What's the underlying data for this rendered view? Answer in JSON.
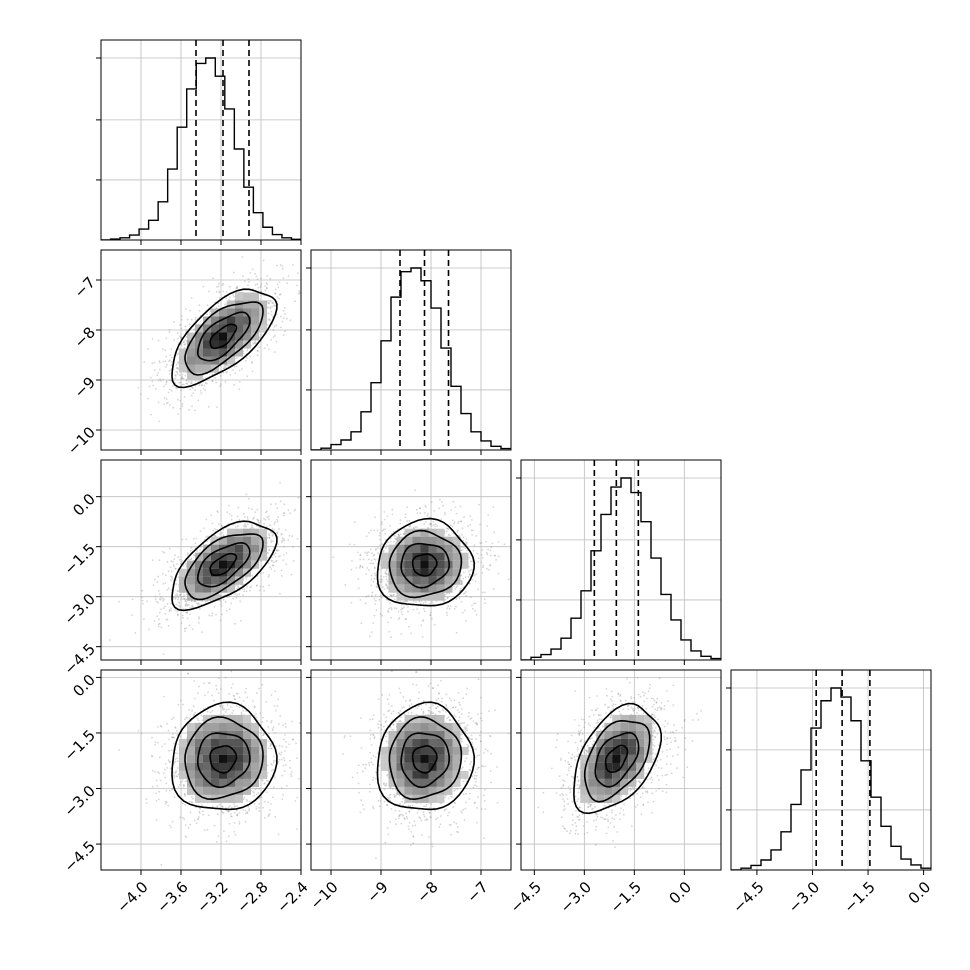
{
  "chart_data": {
    "type": "corner",
    "title": "",
    "grid": true,
    "params": [
      {
        "range": [
          -4.4,
          -2.4
        ],
        "ticks": [
          -4.0,
          -3.6,
          -3.2,
          -2.8,
          -2.4
        ],
        "tick_labels": [
          "−4.0",
          "−3.6",
          "−3.2",
          "−2.8",
          "−2.4"
        ],
        "quantiles": [
          -3.45,
          -3.18,
          -2.92
        ],
        "mean": -3.18,
        "sd": 0.26
      },
      {
        "range": [
          -10.4,
          -6.4
        ],
        "ticks": [
          -10,
          -9,
          -8,
          -7
        ],
        "tick_labels": [
          "−10",
          "−9",
          "−8",
          "−7"
        ],
        "quantiles": [
          -8.62,
          -8.13,
          -7.65
        ],
        "mean": -8.13,
        "sd": 0.48
      },
      {
        "range": [
          -4.9,
          1.1
        ],
        "ticks": [
          -4.5,
          -3.0,
          -1.5,
          0.0
        ],
        "tick_labels": [
          "−4.5",
          "−3.0",
          "−1.5",
          "0.0"
        ],
        "quantiles": [
          -2.7,
          -2.04,
          -1.38
        ],
        "mean": -2.04,
        "sd": 0.65
      },
      {
        "range": [
          -5.2,
          0.2
        ],
        "ticks": [
          -4.5,
          -3.0,
          -1.5,
          0.0
        ],
        "tick_labels": [
          "−4.5",
          "−3.0",
          "−1.5",
          "0.0"
        ],
        "quantiles": [
          -2.9,
          -2.2,
          -1.45
        ],
        "mean": -2.2,
        "sd": 0.72
      }
    ],
    "histograms": [
      [
        0.0,
        0.005,
        0.012,
        0.027,
        0.06,
        0.108,
        0.21,
        0.39,
        0.62,
        0.83,
        0.97,
        1.0,
        0.9,
        0.72,
        0.5,
        0.29,
        0.15,
        0.07,
        0.03,
        0.012,
        0.004
      ],
      [
        0.0,
        0.01,
        0.03,
        0.055,
        0.1,
        0.21,
        0.37,
        0.6,
        0.84,
        0.98,
        1.0,
        0.93,
        0.78,
        0.56,
        0.35,
        0.2,
        0.1,
        0.05,
        0.02,
        0.008
      ],
      [
        0.0,
        0.015,
        0.03,
        0.06,
        0.12,
        0.23,
        0.38,
        0.6,
        0.8,
        0.95,
        1.0,
        0.92,
        0.76,
        0.56,
        0.36,
        0.22,
        0.11,
        0.05,
        0.02,
        0.008
      ],
      [
        0.0,
        0.01,
        0.025,
        0.055,
        0.11,
        0.21,
        0.36,
        0.55,
        0.78,
        0.93,
        1.0,
        0.95,
        0.82,
        0.6,
        0.4,
        0.24,
        0.13,
        0.06,
        0.028,
        0.01
      ]
    ],
    "correlations": [
      [
        1,
        0.65,
        0.6,
        0.05
      ],
      [
        0.65,
        1,
        0.05,
        0.05
      ],
      [
        0.6,
        0.05,
        1,
        0.45
      ],
      [
        0.05,
        0.05,
        0.45,
        1
      ]
    ]
  }
}
